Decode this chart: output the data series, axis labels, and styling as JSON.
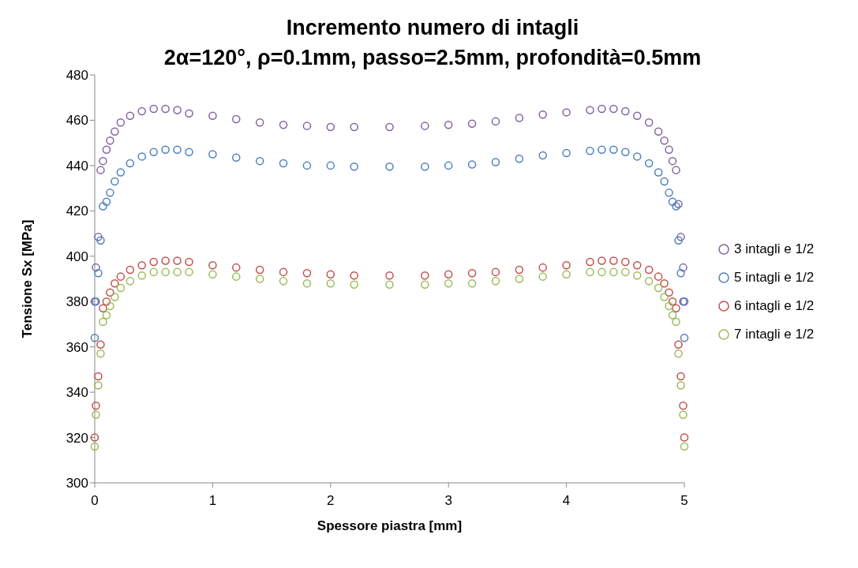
{
  "chart_data": {
    "type": "scatter",
    "title": "Incremento numero di intagli",
    "subtitle": "2α=120°, ρ=0.1mm, passo=2.5mm, profondità=0.5mm",
    "xlabel": "Spessore piastra  [mm]",
    "ylabel": "Tensione Sx [MPa]",
    "x": [
      0,
      0.01,
      0.03,
      0.05,
      0.07,
      0.1,
      0.13,
      0.17,
      0.22,
      0.3,
      0.4,
      0.5,
      0.6,
      0.7,
      0.8,
      1.0,
      1.2,
      1.4,
      1.6,
      1.8,
      2.0,
      2.2,
      2.5,
      2.8,
      3.0,
      3.2,
      3.4,
      3.6,
      3.8,
      4.0,
      4.2,
      4.3,
      4.4,
      4.5,
      4.6,
      4.7,
      4.78,
      4.83,
      4.87,
      4.9,
      4.93,
      4.95,
      4.97,
      4.99,
      5.0
    ],
    "series": [
      {
        "name": "3 intagli e 1/2",
        "color": "#8064a2",
        "values": [
          380,
          395,
          408.5,
          438,
          442,
          447,
          451,
          455,
          459,
          462,
          464,
          465,
          465,
          464.5,
          463,
          462,
          460.5,
          459,
          458,
          457.5,
          457,
          457,
          457,
          457.5,
          458,
          458.5,
          459.5,
          461,
          462.5,
          463.5,
          464.5,
          465,
          465,
          464,
          462,
          459,
          455,
          451,
          447,
          442,
          438,
          423,
          408.5,
          395,
          380
        ]
      },
      {
        "name": "5 intagli e 1/2",
        "color": "#4f81bd",
        "values": [
          364,
          380,
          392.5,
          407,
          422,
          424,
          428,
          433,
          437,
          441,
          444,
          446,
          447,
          447,
          446,
          445,
          443.5,
          442,
          441,
          440,
          440,
          439.5,
          439.5,
          439.5,
          440,
          440.5,
          441.5,
          443,
          444.5,
          445.5,
          446.5,
          447,
          447,
          446,
          444,
          441,
          437,
          433,
          428,
          424,
          422,
          407,
          392.5,
          380,
          364
        ]
      },
      {
        "name": "6 intagli e 1/2",
        "color": "#c0504d",
        "values": [
          320,
          334,
          347,
          361,
          377,
          380,
          384,
          388,
          391,
          394,
          396,
          397.5,
          398,
          398,
          397.5,
          396,
          395,
          394,
          393,
          392.5,
          392,
          391.5,
          391.5,
          391.5,
          392,
          392.5,
          393,
          394,
          395,
          396,
          397.5,
          398,
          398,
          397.5,
          396,
          394,
          391,
          388,
          384,
          380,
          377,
          361,
          347,
          334,
          320
        ]
      },
      {
        "name": "7 intagli e 1/2",
        "color": "#9bbb59",
        "values": [
          316,
          330,
          343,
          357,
          371,
          374,
          378,
          382,
          386,
          389,
          391.5,
          393,
          393,
          393,
          393,
          392,
          391,
          390,
          389,
          388,
          388,
          387.5,
          387.5,
          387.5,
          388,
          388,
          389,
          390,
          391,
          392,
          393,
          393,
          393,
          393,
          391.5,
          389,
          386,
          382,
          378,
          374,
          371,
          357,
          343,
          330,
          316
        ]
      }
    ],
    "xlim": [
      0,
      5
    ],
    "xticks": [
      0,
      1,
      2,
      3,
      4,
      5
    ],
    "ylim": [
      300,
      480
    ],
    "yticks": [
      300,
      320,
      340,
      360,
      380,
      400,
      420,
      440,
      460,
      480
    ],
    "marker": "circle",
    "legend": "right",
    "grid": false
  }
}
